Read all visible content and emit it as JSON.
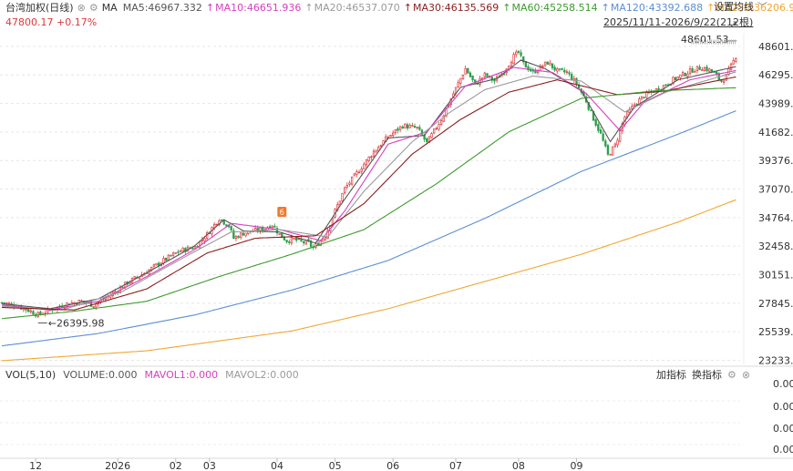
{
  "header": {
    "instrument": "台湾加权(日线)",
    "price_change": "47800.17 +0.17%",
    "date_range": "2025/11/11-2026/9/22(212根)",
    "settings_label": "设置均线",
    "ma_label": "MA"
  },
  "ma_legend": [
    {
      "label": "MA5:46967.332",
      "color": "#555555"
    },
    {
      "label": "MA10:46651.936",
      "color": "#d63fbf"
    },
    {
      "label": "MA20:46537.070",
      "color": "#9a9a9a"
    },
    {
      "label": "MA30:46135.569",
      "color": "#8b1e1e"
    },
    {
      "label": "MA60:45258.514",
      "color": "#3e9a2f"
    },
    {
      "label": "MA120:43392.688",
      "color": "#5b8fd6"
    },
    {
      "label": "MA250:36206.963",
      "color": "#f0a733"
    }
  ],
  "volume_panel": {
    "title": "VOL(5,10)",
    "volume": "VOLUME:0.000",
    "mavol1": "MAVOL1:0.000",
    "mavol2": "MAVOL2:0.000",
    "add_indicator": "加指标",
    "switch_indicator": "换指标",
    "ticks": [
      "0.00",
      "0.00",
      "0.00",
      "0.00"
    ]
  },
  "chart_data": {
    "type": "candlestick",
    "y_ticks": [
      "48601.53",
      "46295.32",
      "43989.12",
      "41682.91",
      "39376.70",
      "37070.50",
      "34764.29",
      "32458.09",
      "30151.88",
      "27845.67",
      "25539.47",
      "23233.26"
    ],
    "x_ticks": [
      "12",
      "2026",
      "02",
      "03",
      "04",
      "05",
      "06",
      "07",
      "08",
      "09"
    ],
    "annotations": {
      "high": "48601.53",
      "low": "26395.98",
      "event_badge": "б"
    },
    "ylim": [
      22900,
      49700
    ],
    "anchors": [
      [
        0,
        27900
      ],
      [
        6,
        27650
      ],
      [
        12,
        27200
      ],
      [
        15,
        26900
      ],
      [
        20,
        27300
      ],
      [
        27,
        27800
      ],
      [
        33,
        28000
      ],
      [
        38,
        27700
      ],
      [
        45,
        28500
      ],
      [
        52,
        29500
      ],
      [
        60,
        30400
      ],
      [
        67,
        31300
      ],
      [
        74,
        32100
      ],
      [
        80,
        32400
      ],
      [
        85,
        33400
      ],
      [
        90,
        34700
      ],
      [
        94,
        34100
      ],
      [
        96,
        33100
      ],
      [
        100,
        33500
      ],
      [
        104,
        33700
      ],
      [
        108,
        33800
      ],
      [
        112,
        34200
      ],
      [
        115,
        33400
      ],
      [
        118,
        32900
      ],
      [
        121,
        33000
      ],
      [
        124,
        32800
      ],
      [
        127,
        32700
      ],
      [
        129,
        32300
      ],
      [
        132,
        32900
      ],
      [
        134,
        33300
      ],
      [
        138,
        35300
      ],
      [
        142,
        37100
      ],
      [
        148,
        38600
      ],
      [
        154,
        40100
      ],
      [
        160,
        41300
      ],
      [
        166,
        42200
      ],
      [
        172,
        42000
      ],
      [
        176,
        40800
      ],
      [
        182,
        42700
      ],
      [
        188,
        45200
      ],
      [
        192,
        46800
      ],
      [
        196,
        45500
      ],
      [
        200,
        46300
      ],
      [
        204,
        45800
      ],
      [
        208,
        46600
      ],
      [
        212,
        47800
      ],
      [
        214,
        48100
      ],
      [
        216,
        47200
      ],
      [
        220,
        46500
      ],
      [
        226,
        47300
      ],
      [
        230,
        46600
      ],
      [
        234,
        46500
      ],
      [
        238,
        45600
      ],
      [
        242,
        44200
      ],
      [
        244,
        43200
      ],
      [
        248,
        41500
      ],
      [
        251,
        39800
      ],
      [
        254,
        40600
      ],
      [
        258,
        42900
      ],
      [
        262,
        43900
      ],
      [
        266,
        44600
      ],
      [
        270,
        45000
      ],
      [
        274,
        45400
      ],
      [
        278,
        45900
      ],
      [
        282,
        46300
      ],
      [
        286,
        46700
      ],
      [
        290,
        46900
      ],
      [
        294,
        46600
      ],
      [
        298,
        45800
      ],
      [
        300,
        46200
      ],
      [
        302,
        47000
      ],
      [
        304,
        47800
      ]
    ],
    "ma_levels": {
      "MA5": [
        [
          0,
          27800
        ],
        [
          20,
          27400
        ],
        [
          40,
          28200
        ],
        [
          60,
          30300
        ],
        [
          80,
          32500
        ],
        [
          92,
          34600
        ],
        [
          100,
          33700
        ],
        [
          115,
          33600
        ],
        [
          130,
          32700
        ],
        [
          140,
          35700
        ],
        [
          160,
          41200
        ],
        [
          175,
          41400
        ],
        [
          190,
          45300
        ],
        [
          205,
          46000
        ],
        [
          215,
          47500
        ],
        [
          225,
          46800
        ],
        [
          240,
          45000
        ],
        [
          252,
          40900
        ],
        [
          262,
          43700
        ],
        [
          280,
          45900
        ],
        [
          304,
          46967
        ]
      ],
      "MA10": [
        [
          0,
          27700
        ],
        [
          20,
          27300
        ],
        [
          40,
          28000
        ],
        [
          60,
          30000
        ],
        [
          80,
          32200
        ],
        [
          95,
          34300
        ],
        [
          115,
          33800
        ],
        [
          132,
          32900
        ],
        [
          142,
          35300
        ],
        [
          160,
          40700
        ],
        [
          176,
          41700
        ],
        [
          192,
          45400
        ],
        [
          212,
          46900
        ],
        [
          228,
          46500
        ],
        [
          242,
          44800
        ],
        [
          256,
          41800
        ],
        [
          266,
          44100
        ],
        [
          285,
          45900
        ],
        [
          304,
          46652
        ]
      ],
      "MA20": [
        [
          0,
          27600
        ],
        [
          25,
          27300
        ],
        [
          50,
          28800
        ],
        [
          75,
          31500
        ],
        [
          95,
          33600
        ],
        [
          115,
          33800
        ],
        [
          135,
          33200
        ],
        [
          150,
          36900
        ],
        [
          170,
          40900
        ],
        [
          185,
          43200
        ],
        [
          200,
          45100
        ],
        [
          220,
          46200
        ],
        [
          240,
          45800
        ],
        [
          258,
          43300
        ],
        [
          275,
          44900
        ],
        [
          304,
          46537
        ]
      ],
      "MA30": [
        [
          0,
          27500
        ],
        [
          30,
          27300
        ],
        [
          60,
          29000
        ],
        [
          85,
          31900
        ],
        [
          105,
          33100
        ],
        [
          130,
          33300
        ],
        [
          150,
          35900
        ],
        [
          170,
          39900
        ],
        [
          190,
          42700
        ],
        [
          210,
          44900
        ],
        [
          230,
          45900
        ],
        [
          255,
          44700
        ],
        [
          275,
          45000
        ],
        [
          304,
          46136
        ]
      ],
      "MA60": [
        [
          0,
          26600
        ],
        [
          30,
          27200
        ],
        [
          60,
          28000
        ],
        [
          90,
          30000
        ],
        [
          120,
          31800
        ],
        [
          150,
          33800
        ],
        [
          180,
          37500
        ],
        [
          210,
          41700
        ],
        [
          240,
          44400
        ],
        [
          270,
          45000
        ],
        [
          304,
          45259
        ]
      ],
      "MA120": [
        [
          0,
          24400
        ],
        [
          40,
          25400
        ],
        [
          80,
          26900
        ],
        [
          120,
          28900
        ],
        [
          160,
          31300
        ],
        [
          200,
          34700
        ],
        [
          240,
          38500
        ],
        [
          280,
          41500
        ],
        [
          304,
          43393
        ]
      ],
      "MA250": [
        [
          0,
          23200
        ],
        [
          60,
          24000
        ],
        [
          120,
          25600
        ],
        [
          160,
          27400
        ],
        [
          200,
          29600
        ],
        [
          240,
          31800
        ],
        [
          280,
          34400
        ],
        [
          304,
          36207
        ]
      ]
    }
  }
}
